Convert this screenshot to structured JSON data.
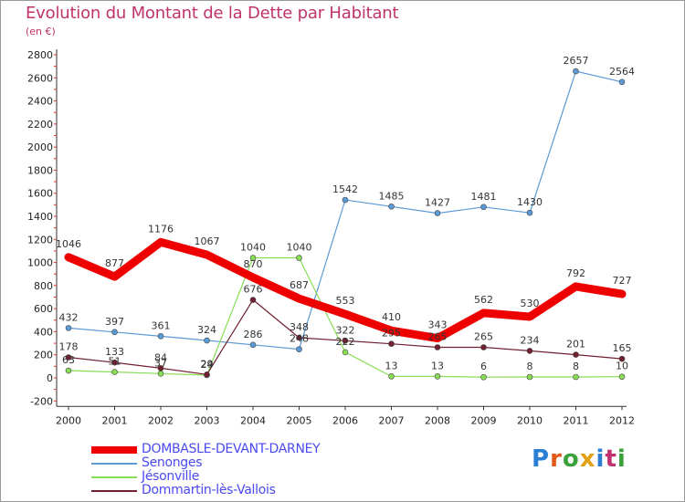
{
  "title": "Evolution du Montant de la Dette par Habitant",
  "subtitle": "(en €)",
  "logo": {
    "text": "Proxiti",
    "colors": [
      "#2a7fd4",
      "#e05a1a",
      "#3aa03a",
      "#e0a010",
      "#2a7fd4",
      "#c03070",
      "#3aa03a"
    ]
  },
  "chart_data": {
    "type": "line",
    "x": [
      "2000",
      "2001",
      "2002",
      "2003",
      "2004",
      "2005",
      "2006",
      "2007",
      "2008",
      "2009",
      "2010",
      "2011",
      "2012"
    ],
    "ylim": [
      -200,
      2800
    ],
    "yticks": [
      -200,
      0,
      200,
      400,
      600,
      800,
      1000,
      1200,
      1400,
      1600,
      1800,
      2000,
      2200,
      2400,
      2600,
      2800
    ],
    "grid": false,
    "legend": "bottom",
    "series": [
      {
        "name": "DOMBASLE-DEVANT-DARNEY",
        "color": "#ee0000",
        "values": [
          1046,
          877,
          1176,
          1067,
          870,
          687,
          553,
          410,
          343,
          562,
          530,
          792,
          727
        ]
      },
      {
        "name": "Senonges",
        "color": "#5b9ad6",
        "values": [
          432,
          397,
          361,
          324,
          286,
          248,
          1542,
          1485,
          1427,
          1481,
          1430,
          2657,
          2564
        ]
      },
      {
        "name": "Jésonville",
        "color": "#88dd55",
        "values": [
          63,
          51,
          37,
          24,
          1040,
          1040,
          222,
          13,
          13,
          6,
          8,
          8,
          10
        ]
      },
      {
        "name": "Dommartin-lès-Vallois",
        "color": "#702030",
        "values": [
          178,
          133,
          84,
          29,
          676,
          348,
          322,
          295,
          265,
          265,
          234,
          201,
          165
        ]
      }
    ]
  }
}
